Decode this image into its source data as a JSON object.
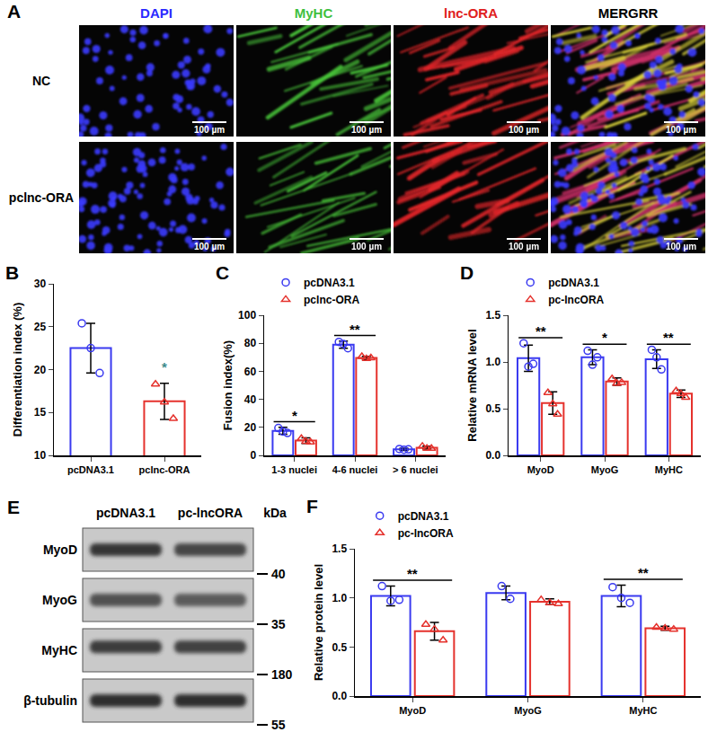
{
  "image_panel": {
    "title": "A",
    "columns": [
      {
        "text": "DAPI",
        "color": "#2b2bff"
      },
      {
        "text": "MyHC",
        "color": "#3fbf3f"
      },
      {
        "text": "lnc-ORA",
        "color": "#e02020"
      },
      {
        "text": "MERGRR",
        "color": "#000000"
      }
    ],
    "rows": [
      "NC",
      "pclnc-ORA"
    ],
    "scale_bar": "100 µm"
  },
  "blot": {
    "title": "E",
    "lanes": [
      "pcDNA3.1",
      "pc-lncORA"
    ],
    "unit": "kDa",
    "rows": [
      {
        "protein": "MyoD",
        "marker": 40
      },
      {
        "protein": "MyoG",
        "marker": 35
      },
      {
        "protein": "MyHC",
        "marker": 180
      },
      {
        "protein": "β-tubulin",
        "marker": 55
      }
    ]
  },
  "chart_data": [
    {
      "title": "B",
      "type": "bar",
      "categories": [
        "pcDNA3.1",
        "pclnc-ORA"
      ],
      "y_label": "Differentiation index (%)",
      "ylim": [
        10,
        30
      ],
      "yticks": [
        10,
        15,
        20,
        25,
        30
      ],
      "grid": false,
      "series": [
        {
          "color": "#3a3af0",
          "marker": "circle",
          "values": [
            22.5,
            null
          ],
          "error": [
            2.9,
            null
          ],
          "points": [
            [
              25.4,
              22.5,
              19.6
            ],
            null
          ]
        },
        {
          "color": "#e5322d",
          "marker": "triangle-up",
          "values": [
            null,
            16.3
          ],
          "error": [
            null,
            2.1
          ],
          "points": [
            null,
            [
              18.3,
              16.2,
              14.3
            ]
          ]
        }
      ],
      "annotations": [
        {
          "category": "pclnc-ORA",
          "text": "*",
          "color": "#3d8b8b"
        }
      ]
    },
    {
      "title": "C",
      "type": "bar",
      "categories": [
        "1-3 nuclei",
        "4-6 nuclei",
        "> 6 nuclei"
      ],
      "y_label": "Fusion index(%)",
      "ylim": [
        0,
        100
      ],
      "yticks": [
        0,
        20,
        40,
        60,
        80,
        100
      ],
      "grid": false,
      "legend": "top left",
      "series": [
        {
          "name": "pcDNA3.1",
          "color": "#3a3af0",
          "marker": "circle",
          "values": [
            17.5,
            79,
            4.3
          ],
          "error": [
            2.5,
            2.5,
            0.8
          ],
          "points": [
            [
              19.5,
              17,
              16
            ],
            [
              81,
              79.5,
              76.5
            ],
            [
              4.5,
              4,
              4.3
            ]
          ]
        },
        {
          "name": "pclnc-ORA",
          "color": "#e5322d",
          "marker": "triangle-up",
          "values": [
            10.5,
            69.5,
            5.5
          ],
          "error": [
            2,
            1.2,
            1
          ],
          "points": [
            [
              12,
              10,
              9.5
            ],
            [
              70.5,
              69,
              69.5
            ],
            [
              6.5,
              5,
              5
            ]
          ]
        }
      ],
      "annotations": [
        {
          "category": "1-3 nuclei",
          "text": "*"
        },
        {
          "category": "4-6 nuclei",
          "text": "**"
        }
      ]
    },
    {
      "title": "D",
      "type": "bar",
      "categories": [
        "MyoD",
        "MyoG",
        "MyHC"
      ],
      "y_label": "Relative mRNA level",
      "ylim": [
        0,
        1.5
      ],
      "yticks": [
        {
          "value": 0,
          "label": "0.0"
        },
        0.5,
        {
          "value": 1,
          "label": "1.0"
        },
        1.5
      ],
      "grid": false,
      "legend": "top left",
      "series": [
        {
          "name": "pcDNA3.1",
          "color": "#3a3af0",
          "marker": "circle",
          "values": [
            1.04,
            1.05,
            1.03
          ],
          "error": [
            0.14,
            0.08,
            0.1
          ],
          "points": [
            [
              1.2,
              0.95,
              0.98
            ],
            [
              1.12,
              0.97,
              1.05
            ],
            [
              1.13,
              1.05,
              0.92
            ]
          ]
        },
        {
          "name": "pc-lncORA",
          "color": "#e5322d",
          "marker": "triangle-up",
          "values": [
            0.56,
            0.79,
            0.66
          ],
          "error": [
            0.12,
            0.04,
            0.04
          ],
          "points": [
            [
              0.67,
              0.55,
              0.44
            ],
            [
              0.82,
              0.77,
              0.78
            ],
            [
              0.69,
              0.66,
              0.62
            ]
          ]
        }
      ],
      "annotations": [
        {
          "category": "MyoD",
          "text": "**"
        },
        {
          "category": "MyoG",
          "text": "*"
        },
        {
          "category": "MyHC",
          "text": "**"
        }
      ]
    },
    {
      "title": "F",
      "type": "bar",
      "categories": [
        "MyoD",
        "MyoG",
        "MyHC"
      ],
      "y_label": "Relative protein level",
      "ylim": [
        0,
        1.5
      ],
      "yticks": [
        {
          "value": 0,
          "label": "0.0"
        },
        0.5,
        {
          "value": 1,
          "label": "1.0"
        },
        1.5
      ],
      "grid": false,
      "legend": "top left",
      "series": [
        {
          "name": "pcDNA3.1",
          "color": "#3a3af0",
          "marker": "circle",
          "values": [
            1.02,
            1.05,
            1.02
          ],
          "error": [
            0.1,
            0.07,
            0.11
          ],
          "points": [
            [
              1.12,
              0.97,
              0.98
            ],
            [
              1.12,
              0.99
            ],
            [
              1.11,
              1.0,
              0.95
            ]
          ]
        },
        {
          "name": "pc-lncORA",
          "color": "#e5322d",
          "marker": "triangle-up",
          "values": [
            0.66,
            0.96,
            0.69
          ],
          "error": [
            0.09,
            0.03,
            0.02
          ],
          "points": [
            [
              0.73,
              0.68,
              0.57
            ],
            [
              0.98,
              0.95,
              0.94
            ],
            [
              0.7,
              0.69,
              0.68
            ]
          ]
        }
      ],
      "annotations": [
        {
          "category": "MyoD",
          "text": "**"
        },
        {
          "category": "MyHC",
          "text": "**"
        }
      ]
    }
  ]
}
